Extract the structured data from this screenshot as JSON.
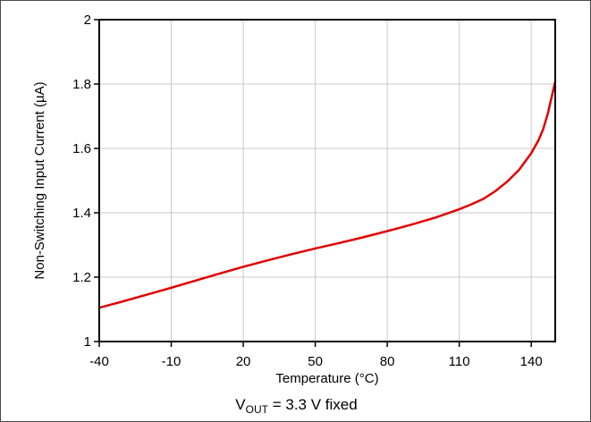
{
  "chart_data": {
    "type": "line",
    "xlabel": "Temperature (°C)",
    "ylabel": "Non-Switching Input Current (µA)",
    "xlim": [
      -40,
      150
    ],
    "ylim": [
      1,
      2
    ],
    "x_ticks": [
      -40,
      -10,
      20,
      50,
      80,
      110,
      140
    ],
    "x_tick_labels": [
      "-40",
      "-10",
      "20",
      "50",
      "80",
      "110",
      "140"
    ],
    "y_ticks": [
      1,
      1.2,
      1.4,
      1.6,
      1.8,
      2
    ],
    "y_tick_labels": [
      "1",
      "1.2",
      "1.4",
      "1.6",
      "1.8",
      "2"
    ],
    "grid": true,
    "series": [
      {
        "color": "#e00000",
        "x": [
          -40,
          -30,
          -20,
          -10,
          0,
          10,
          20,
          30,
          40,
          50,
          60,
          70,
          80,
          90,
          100,
          110,
          115,
          120,
          125,
          130,
          135,
          140,
          143,
          145,
          147,
          150
        ],
        "y": [
          1.105,
          1.125,
          1.146,
          1.167,
          1.189,
          1.211,
          1.232,
          1.252,
          1.271,
          1.289,
          1.306,
          1.324,
          1.343,
          1.363,
          1.385,
          1.411,
          1.426,
          1.443,
          1.467,
          1.497,
          1.534,
          1.585,
          1.625,
          1.66,
          1.711,
          1.808
        ]
      }
    ]
  },
  "caption": {
    "prefix": "V",
    "subscript": "OUT",
    "suffix": " = 3.3 V fixed"
  }
}
